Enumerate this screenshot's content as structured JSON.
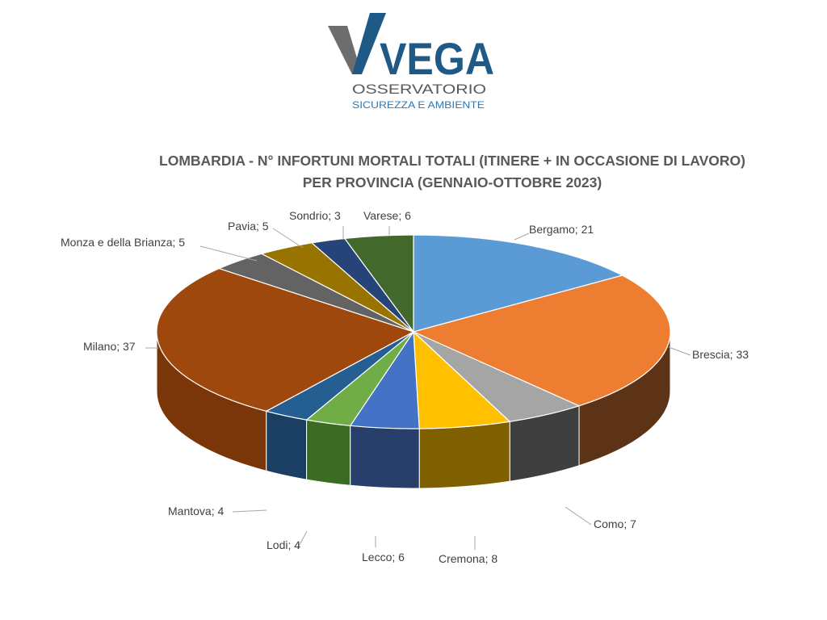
{
  "logo": {
    "name": "VEGA",
    "line1": "OSSERVATORIO",
    "line2": "SICUREZZA E AMBIENTE"
  },
  "chart_data": {
    "type": "pie",
    "title_line1": "LOMBARDIA - N° INFORTUNI MORTALI TOTALI (ITINERE + IN OCCASIONE DI LAVORO)",
    "title_line2": "PER PROVINCIA (GENNAIO-OTTOBRE 2023)",
    "slices": [
      {
        "label": "Bergamo",
        "value": 21,
        "color": "#5B9BD5",
        "side": "#3E6F9C"
      },
      {
        "label": "Brescia",
        "value": 33,
        "color": "#ED7D31",
        "side": "#5C3316"
      },
      {
        "label": "Como",
        "value": 7,
        "color": "#A5A5A5",
        "side": "#3F3F3F"
      },
      {
        "label": "Cremona",
        "value": 8,
        "color": "#FFC000",
        "side": "#7F6000"
      },
      {
        "label": "Lecco",
        "value": 6,
        "color": "#4472C4",
        "side": "#283E6B"
      },
      {
        "label": "Lodi",
        "value": 4,
        "color": "#70AD47",
        "side": "#3C6B23"
      },
      {
        "label": "Mantova",
        "value": 4,
        "color": "#255E91",
        "side": "#1A3F62"
      },
      {
        "label": "Milano",
        "value": 37,
        "color": "#9E480E",
        "side": "#7A3609"
      },
      {
        "label": "Monza e della Brianza",
        "value": 5,
        "color": "#636363",
        "side": "#3A3A3A"
      },
      {
        "label": "Pavia",
        "value": 5,
        "color": "#997300",
        "side": "#5E4700"
      },
      {
        "label": "Sondrio",
        "value": 3,
        "color": "#264478",
        "side": "#18294A"
      },
      {
        "label": "Varese",
        "value": 6,
        "color": "#43682B",
        "side": "#2A421B"
      }
    ],
    "label_format": "{label}; {value}"
  }
}
